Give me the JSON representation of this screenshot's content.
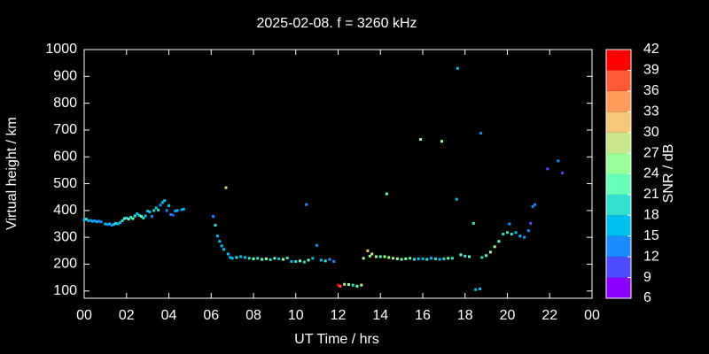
{
  "chart_data": {
    "type": "scatter",
    "title": "2025-02-08. f = 3260 kHz",
    "x_label": "UT Time / hrs",
    "y_label": "Virtual height / km",
    "colorbar_label": "SNR / dB",
    "xlim": [
      0,
      24
    ],
    "xticks": [
      {
        "value": 0,
        "label": "00"
      },
      {
        "value": 2,
        "label": "02"
      },
      {
        "value": 4,
        "label": "04"
      },
      {
        "value": 6,
        "label": "06"
      },
      {
        "value": 8,
        "label": "08"
      },
      10,
      12,
      14,
      16,
      18,
      20,
      22,
      {
        "value": 24,
        "label": "00"
      }
    ],
    "ylim": [
      73,
      1000
    ],
    "yticks": [
      100,
      200,
      300,
      400,
      500,
      600,
      700,
      800,
      900,
      1000
    ],
    "clim": [
      6,
      42
    ],
    "cticks": [
      6,
      9,
      12,
      15,
      18,
      21,
      24,
      27,
      30,
      33,
      36,
      39,
      42
    ],
    "colors": [
      "#8a00ff",
      "#4d4dff",
      "#1a8cff",
      "#00c0f0",
      "#33e0d0",
      "#66ffb8",
      "#99ff99",
      "#c8e68a",
      "#f5c878",
      "#ff9a5a",
      "#ff5a38",
      "#ff0000"
    ],
    "series": [
      {
        "x": [
          0,
          0.1,
          0.2,
          0.3,
          0.4,
          0.5,
          0.6,
          0.7,
          0.8,
          1.0,
          1.1,
          1.2,
          1.3,
          1.4,
          1.5,
          1.6,
          1.7,
          1.8,
          1.9,
          2.0,
          2.1,
          2.2,
          2.3,
          2.4,
          2.5,
          2.6,
          2.7,
          2.8,
          2.9,
          3.0,
          3.1,
          3.2,
          3.3,
          3.4,
          3.5,
          3.6,
          3.7,
          3.8,
          3.9,
          4.0,
          4.1,
          4.2,
          4.3,
          4.4,
          4.6,
          4.7,
          6.1,
          6.2,
          6.3,
          6.4,
          6.5,
          6.6,
          6.7,
          6.8,
          6.9,
          7.0,
          7.2,
          7.4,
          7.6,
          7.8,
          8.0,
          8.2,
          8.4,
          8.6,
          8.8,
          9.0,
          9.2,
          9.4,
          9.6,
          9.8,
          10.0,
          10.2,
          10.4,
          10.5,
          10.6,
          10.8,
          11.0,
          11.2,
          11.4,
          11.6,
          11.8,
          12.0,
          12.1,
          12.3,
          12.5,
          12.7,
          12.9,
          13.1,
          13.2,
          13.4,
          13.5,
          13.6,
          13.8,
          14.0,
          14.2,
          14.3,
          14.4,
          14.6,
          14.8,
          15.0,
          15.2,
          15.4,
          15.6,
          15.8,
          15.9,
          16.0,
          16.2,
          16.4,
          16.6,
          16.8,
          16.9,
          17.0,
          17.2,
          17.4,
          17.6,
          17.65,
          17.8,
          18.0,
          18.2,
          18.4,
          18.5,
          18.7,
          18.75,
          18.8,
          19.0,
          19.2,
          19.4,
          19.6,
          19.8,
          20.0,
          20.1,
          20.2,
          20.4,
          20.6,
          20.8,
          21.0,
          21.1,
          21.2,
          21.3,
          21.9,
          22.4,
          22.6
        ],
        "values": [
          365,
          368,
          362,
          363,
          360,
          362,
          358,
          360,
          358,
          350,
          348,
          350,
          345,
          348,
          352,
          350,
          355,
          362,
          370,
          372,
          368,
          375,
          370,
          380,
          388,
          382,
          378,
          372,
          380,
          398,
          395,
          378,
          400,
          410,
          402,
          420,
          430,
          437,
          400,
          418,
          385,
          383,
          398,
          400,
          403,
          405,
          378,
          345,
          305,
          285,
          268,
          255,
          485,
          238,
          225,
          222,
          225,
          228,
          225,
          222,
          220,
          222,
          218,
          220,
          217,
          222,
          220,
          218,
          223,
          210,
          210,
          212,
          208,
          422,
          215,
          222,
          270,
          215,
          212,
          218,
          210,
          122,
          118,
          125,
          124,
          122,
          118,
          122,
          222,
          250,
          230,
          238,
          228,
          228,
          228,
          462,
          225,
          222,
          220,
          218,
          220,
          222,
          218,
          220,
          665,
          220,
          218,
          222,
          220,
          218,
          658,
          220,
          222,
          222,
          442,
          930,
          235,
          230,
          228,
          352,
          105,
          108,
          688,
          225,
          232,
          245,
          265,
          285,
          312,
          318,
          350,
          312,
          318,
          305,
          300,
          325,
          352,
          415,
          422,
          555,
          585,
          540
        ],
        "snr": [
          15,
          18,
          15,
          12,
          15,
          12,
          15,
          12,
          12,
          15,
          12,
          15,
          12,
          15,
          18,
          15,
          15,
          18,
          21,
          18,
          21,
          18,
          21,
          18,
          15,
          18,
          21,
          18,
          15,
          15,
          15,
          12,
          18,
          15,
          18,
          12,
          15,
          15,
          12,
          15,
          12,
          9,
          12,
          15,
          12,
          15,
          12,
          18,
          15,
          15,
          15,
          15,
          27,
          15,
          15,
          15,
          18,
          15,
          15,
          18,
          21,
          18,
          21,
          24,
          18,
          21,
          15,
          24,
          18,
          15,
          18,
          21,
          18,
          12,
          21,
          15,
          12,
          15,
          18,
          12,
          12,
          39,
          36,
          27,
          24,
          18,
          21,
          27,
          24,
          30,
          24,
          27,
          24,
          21,
          24,
          21,
          24,
          27,
          24,
          21,
          24,
          21,
          18,
          15,
          24,
          15,
          18,
          15,
          18,
          15,
          24,
          18,
          21,
          18,
          15,
          15,
          21,
          18,
          21,
          18,
          15,
          15,
          12,
          18,
          21,
          24,
          24,
          21,
          18,
          18,
          12,
          18,
          15,
          15,
          12,
          12,
          9,
          12,
          12,
          9,
          12,
          9
        ]
      }
    ]
  }
}
